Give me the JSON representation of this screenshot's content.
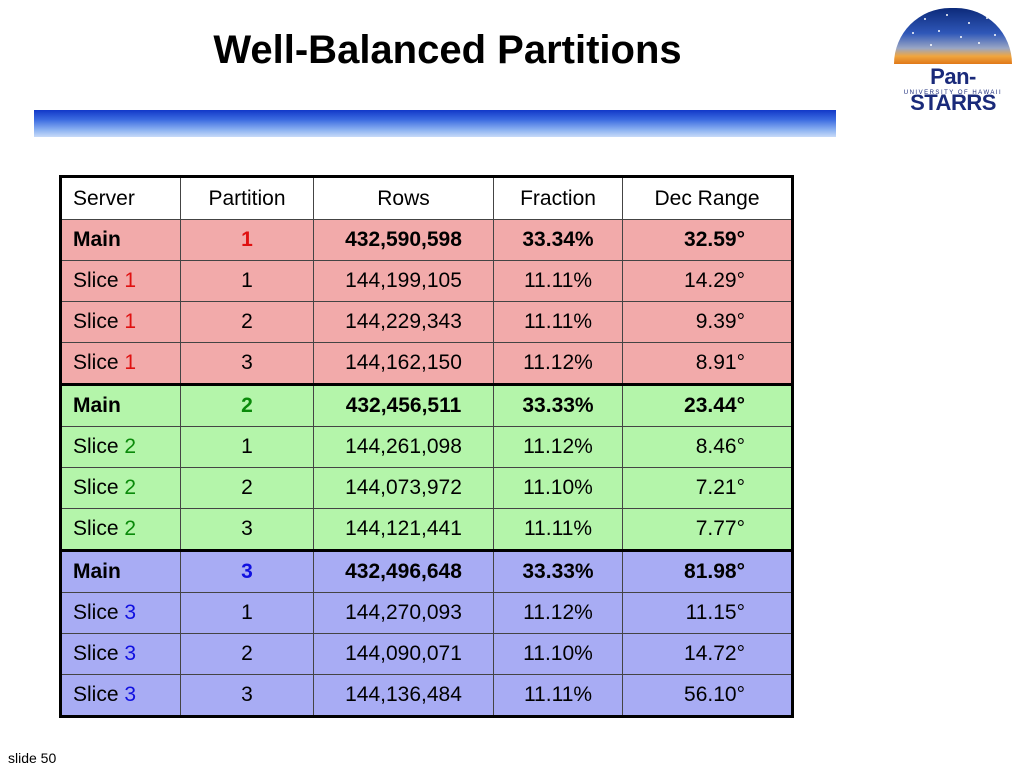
{
  "slide": {
    "title": "Well-Balanced Partitions",
    "number_label": "slide 50"
  },
  "logo": {
    "name": "Pan-STARRS",
    "subtitle": "UNIVERSITY OF HAWAII"
  },
  "table": {
    "headers": [
      "Server",
      "Partition",
      "Rows",
      "Fraction",
      "Dec Range"
    ],
    "groups": [
      {
        "number_color": "#e01010",
        "rows": [
          {
            "server_label": "Main",
            "server_num": "",
            "partition": "1",
            "rows": "432,590,598",
            "fraction": "33.34%",
            "dec_range": "32.59°"
          },
          {
            "server_label": "Slice ",
            "server_num": "1",
            "partition": "1",
            "rows": "144,199,105",
            "fraction": "11.11%",
            "dec_range": "14.29°"
          },
          {
            "server_label": "Slice ",
            "server_num": "1",
            "partition": "2",
            "rows": "144,229,343",
            "fraction": "11.11%",
            "dec_range": "9.39°"
          },
          {
            "server_label": "Slice ",
            "server_num": "1",
            "partition": "3",
            "rows": "144,162,150",
            "fraction": "11.12%",
            "dec_range": "8.91°"
          }
        ]
      },
      {
        "number_color": "#0a8a0a",
        "rows": [
          {
            "server_label": "Main",
            "server_num": "",
            "partition": "2",
            "rows": "432,456,511",
            "fraction": "33.33%",
            "dec_range": "23.44°"
          },
          {
            "server_label": "Slice ",
            "server_num": "2",
            "partition": "1",
            "rows": "144,261,098",
            "fraction": "11.12%",
            "dec_range": "8.46°"
          },
          {
            "server_label": "Slice ",
            "server_num": "2",
            "partition": "2",
            "rows": "144,073,972",
            "fraction": "11.10%",
            "dec_range": "7.21°"
          },
          {
            "server_label": "Slice ",
            "server_num": "2",
            "partition": "3",
            "rows": "144,121,441",
            "fraction": "11.11%",
            "dec_range": "7.77°"
          }
        ]
      },
      {
        "number_color": "#1010e0",
        "rows": [
          {
            "server_label": "Main",
            "server_num": "",
            "partition": "3",
            "rows": "432,496,648",
            "fraction": "33.33%",
            "dec_range": "81.98°"
          },
          {
            "server_label": "Slice ",
            "server_num": "3",
            "partition": "1",
            "rows": "144,270,093",
            "fraction": "11.12%",
            "dec_range": "11.15°"
          },
          {
            "server_label": "Slice ",
            "server_num": "3",
            "partition": "2",
            "rows": "144,090,071",
            "fraction": "11.10%",
            "dec_range": "14.72°"
          },
          {
            "server_label": "Slice ",
            "server_num": "3",
            "partition": "3",
            "rows": "144,136,484",
            "fraction": "11.11%",
            "dec_range": "56.10°"
          }
        ]
      }
    ]
  }
}
